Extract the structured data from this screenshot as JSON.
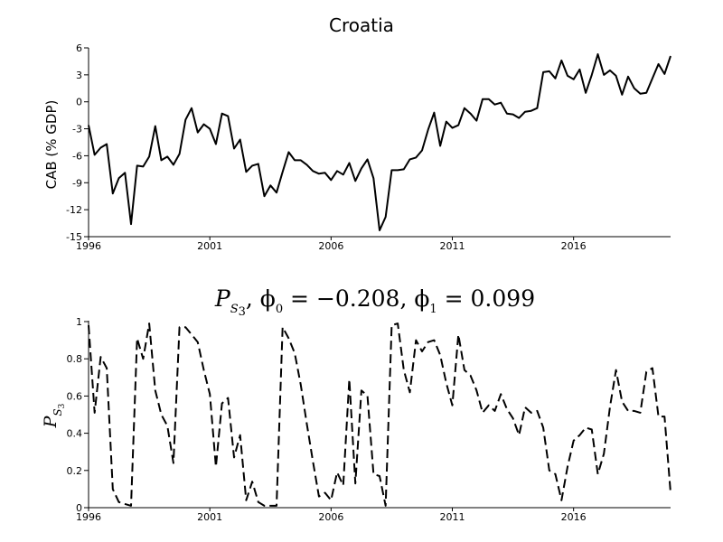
{
  "chart_data": [
    {
      "type": "line",
      "title": "Croatia",
      "xlabel": "",
      "ylabel": "CAB (% GDP)",
      "xlim": [
        1996,
        2020
      ],
      "ylim": [
        -15,
        6
      ],
      "yticks": [
        6,
        3,
        0,
        -3,
        -6,
        -9,
        -12,
        -15
      ],
      "xticks": [
        "1996",
        "2001",
        "2006",
        "2011",
        "2016"
      ],
      "series": [
        {
          "style": "solid",
          "x": [
            1996.0,
            1996.25,
            1996.5,
            1996.75,
            1997.0,
            1997.25,
            1997.5,
            1997.75,
            1998.0,
            1998.25,
            1998.5,
            1998.75,
            1999.0,
            1999.25,
            1999.5,
            1999.75,
            2000.0,
            2000.25,
            2000.5,
            2000.75,
            2001.0,
            2001.25,
            2001.5,
            2001.75,
            2002.0,
            2002.25,
            2002.5,
            2002.75,
            2003.0,
            2003.25,
            2003.5,
            2003.75,
            2004.0,
            2004.25,
            2004.5,
            2004.75,
            2005.0,
            2005.25,
            2005.5,
            2005.75,
            2006.0,
            2006.25,
            2006.5,
            2006.75,
            2007.0,
            2007.25,
            2007.5,
            2007.75,
            2008.0,
            2008.25,
            2008.5,
            2008.75,
            2009.0,
            2009.25,
            2009.5,
            2009.75,
            2010.0,
            2010.25,
            2010.5,
            2010.75,
            2011.0,
            2011.25,
            2011.5,
            2011.75,
            2012.0,
            2012.25,
            2012.5,
            2012.75,
            2013.0,
            2013.25,
            2013.5,
            2013.75,
            2014.0,
            2014.25,
            2014.5,
            2014.75,
            2015.0,
            2015.25,
            2015.5,
            2015.75,
            2016.0,
            2016.25,
            2016.5,
            2016.75,
            2017.0,
            2017.25,
            2017.5,
            2017.75,
            2018.0,
            2018.25,
            2018.5,
            2018.75,
            2019.0,
            2019.25,
            2019.5,
            2019.75,
            2020.0
          ],
          "values": [
            -2.6,
            -5.9,
            -5.1,
            -4.7,
            -10.2,
            -8.5,
            -7.9,
            -13.6,
            -7.1,
            -7.2,
            -6.1,
            -2.7,
            -6.5,
            -6.1,
            -7.0,
            -5.8,
            -2.0,
            -0.7,
            -3.4,
            -2.5,
            -3.0,
            -4.7,
            -1.3,
            -1.6,
            -5.2,
            -4.2,
            -7.8,
            -7.1,
            -6.9,
            -10.5,
            -9.3,
            -10.1,
            -7.8,
            -5.6,
            -6.5,
            -6.5,
            -7.0,
            -7.7,
            -8.0,
            -7.9,
            -8.7,
            -7.7,
            -8.1,
            -6.8,
            -8.8,
            -7.4,
            -6.4,
            -8.5,
            -14.3,
            -12.8,
            -7.6,
            -7.6,
            -7.5,
            -6.4,
            -6.2,
            -5.4,
            -3.1,
            -1.2,
            -4.9,
            -2.2,
            -2.9,
            -2.6,
            -0.7,
            -1.3,
            -2.1,
            0.3,
            0.3,
            -0.3,
            -0.1,
            -1.3,
            -1.4,
            -1.8,
            -1.1,
            -1.0,
            -0.7,
            3.3,
            3.4,
            2.6,
            4.6,
            2.9,
            2.5,
            3.6,
            1.0,
            3.0,
            5.3,
            3.0,
            3.5,
            2.9,
            0.8,
            2.8,
            1.5,
            0.9,
            1.0,
            2.6,
            4.2,
            3.1,
            5.1
          ]
        }
      ]
    },
    {
      "type": "line",
      "title": "P_{S_3}, φ_0 = −0.208, φ_1 = 0.099",
      "title_parts": {
        "var": "P",
        "sub_s": "S",
        "sub_3": "3",
        "rest": ", ϕ",
        "sub_0": "0",
        "eq0": " = −0.208, ϕ",
        "sub_1": "1",
        "eq1": " = 0.099"
      },
      "ylabel": "P_{S_3}",
      "ylabel_parts": {
        "var": "P",
        "sub_s": "S",
        "sub_3": "3"
      },
      "xlim": [
        1996,
        2020
      ],
      "ylim": [
        0,
        1
      ],
      "yticks": [
        "1",
        "0.8",
        "0.6",
        "0.4",
        "0.2",
        "0"
      ],
      "xticks": [
        "1996",
        "2001",
        "2006",
        "2011",
        "2016"
      ],
      "series": [
        {
          "style": "dashed",
          "x": [
            1996.0,
            1996.25,
            1996.5,
            1996.75,
            1997.0,
            1997.25,
            1997.5,
            1997.75,
            1998.0,
            1998.25,
            1998.5,
            1998.75,
            1999.0,
            1999.25,
            1999.5,
            1999.75,
            2000.0,
            2000.25,
            2000.5,
            2000.75,
            2001.0,
            2001.25,
            2001.5,
            2001.75,
            2002.0,
            2002.25,
            2002.5,
            2002.75,
            2003.0,
            2003.25,
            2003.5,
            2003.75,
            2004.0,
            2004.25,
            2004.5,
            2004.75,
            2005.0,
            2005.25,
            2005.5,
            2005.75,
            2006.0,
            2006.25,
            2006.5,
            2006.75,
            2007.0,
            2007.25,
            2007.5,
            2007.75,
            2008.0,
            2008.25,
            2008.5,
            2008.75,
            2009.0,
            2009.25,
            2009.5,
            2009.75,
            2010.0,
            2010.25,
            2010.5,
            2010.75,
            2011.0,
            2011.25,
            2011.5,
            2011.75,
            2012.0,
            2012.25,
            2012.5,
            2012.75,
            2013.0,
            2013.25,
            2013.5,
            2013.75,
            2014.0,
            2014.25,
            2014.5,
            2014.75,
            2015.0,
            2015.25,
            2015.5,
            2015.75,
            2016.0,
            2016.25,
            2016.5,
            2016.75,
            2017.0,
            2017.25,
            2017.5,
            2017.75,
            2018.0,
            2018.25,
            2018.5,
            2018.75,
            2019.0,
            2019.25,
            2019.5,
            2019.75,
            2020.0
          ],
          "values": [
            0.98,
            0.51,
            0.81,
            0.75,
            0.1,
            0.03,
            0.02,
            0.01,
            0.91,
            0.8,
            0.99,
            0.63,
            0.5,
            0.44,
            0.24,
            0.97,
            0.97,
            0.93,
            0.89,
            0.74,
            0.61,
            0.22,
            0.56,
            0.59,
            0.27,
            0.39,
            0.04,
            0.14,
            0.03,
            0.01,
            0.01,
            0.01,
            0.97,
            0.91,
            0.83,
            0.66,
            0.45,
            0.25,
            0.06,
            0.08,
            0.04,
            0.19,
            0.12,
            0.69,
            0.13,
            0.63,
            0.6,
            0.18,
            0.17,
            0.01,
            0.98,
            0.99,
            0.74,
            0.62,
            0.9,
            0.84,
            0.89,
            0.9,
            0.82,
            0.67,
            0.55,
            0.93,
            0.74,
            0.71,
            0.63,
            0.51,
            0.55,
            0.52,
            0.61,
            0.53,
            0.48,
            0.39,
            0.54,
            0.51,
            0.52,
            0.43,
            0.2,
            0.18,
            0.04,
            0.22,
            0.36,
            0.39,
            0.43,
            0.42,
            0.18,
            0.29,
            0.54,
            0.74,
            0.57,
            0.52,
            0.52,
            0.51,
            0.73,
            0.75,
            0.49,
            0.49,
            0.08
          ]
        }
      ]
    }
  ]
}
